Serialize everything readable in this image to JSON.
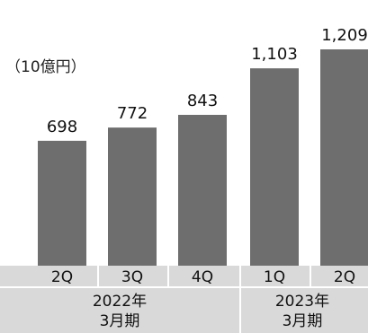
{
  "chart_data": {
    "type": "bar",
    "unit_label": "（10億円）",
    "categories": [
      "2Q",
      "3Q",
      "4Q",
      "1Q",
      "2Q"
    ],
    "values": [
      698,
      772,
      843,
      1103,
      1209
    ],
    "value_labels": [
      "698",
      "772",
      "843",
      "1,103",
      "1,209"
    ],
    "groups": [
      {
        "label_line1": "2022年",
        "label_line2": "3月期",
        "span": [
          0,
          2
        ]
      },
      {
        "label_line1": "2023年",
        "label_line2": "3月期",
        "span": [
          3,
          4
        ]
      }
    ],
    "ylim": [
      0,
      1209
    ],
    "grid": false,
    "legend": "none",
    "colors": {
      "bar": "#6e6e6e",
      "axis_band": "#d9d9d9",
      "divider": "#ffffff"
    }
  }
}
